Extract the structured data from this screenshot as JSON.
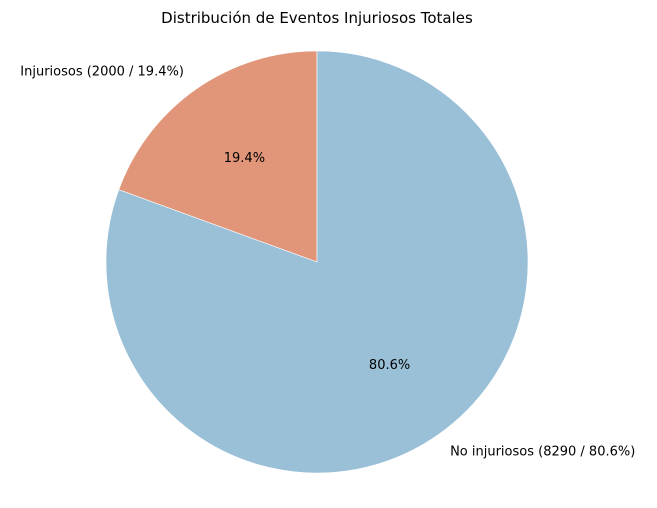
{
  "chart_data": {
    "type": "pie",
    "title": "Distribución de Eventos Injuriosos Totales",
    "start_angle_deg": 90,
    "direction": "counterclockwise",
    "slices": [
      {
        "label": "Injuriosos (2000 / 19.4%)",
        "value": 2000,
        "percent_label": "19.4%",
        "color": "#e1967a"
      },
      {
        "label": "No injuriosos (8290 / 80.6%)",
        "value": 8290,
        "percent_label": "80.6%",
        "color": "#9ac0d8"
      }
    ]
  }
}
